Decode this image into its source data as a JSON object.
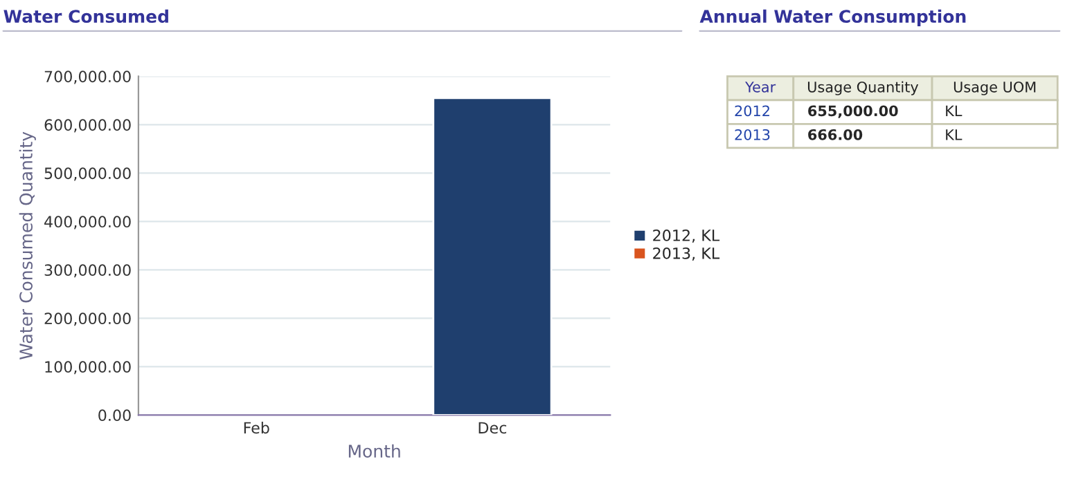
{
  "chart_data": [
    {
      "type": "bar",
      "title": "Water Consumed",
      "xlabel": "Month",
      "ylabel": "Water Consumed Quantity",
      "categories": [
        "Feb",
        "Dec"
      ],
      "series": [
        {
          "name": "2012, KL",
          "color": "#1f3f6e",
          "values": [
            null,
            655000
          ]
        },
        {
          "name": "2013, KL",
          "color": "#d9541e",
          "values": [
            null,
            null
          ]
        }
      ],
      "ylim": [
        0,
        700000
      ],
      "yticks": [
        {
          "value": 0,
          "label": "0.00"
        },
        {
          "value": 100000,
          "label": "100,000.00"
        },
        {
          "value": 200000,
          "label": "200,000.00"
        },
        {
          "value": 300000,
          "label": "300,000.00"
        },
        {
          "value": 400000,
          "label": "400,000.00"
        },
        {
          "value": 500000,
          "label": "500,000.00"
        },
        {
          "value": 600000,
          "label": "600,000.00"
        },
        {
          "value": 700000,
          "label": "700,000.00"
        }
      ],
      "grid": "y",
      "legend": "right"
    },
    {
      "type": "other",
      "title": "Annual Water Consumption",
      "categories": [
        "Year",
        "Usage Quantity",
        "Usage UOM"
      ],
      "cell_labels": [
        [
          "2012",
          "655,000.00",
          "KL"
        ],
        [
          "2013",
          "666.00",
          "KL"
        ]
      ]
    }
  ]
}
